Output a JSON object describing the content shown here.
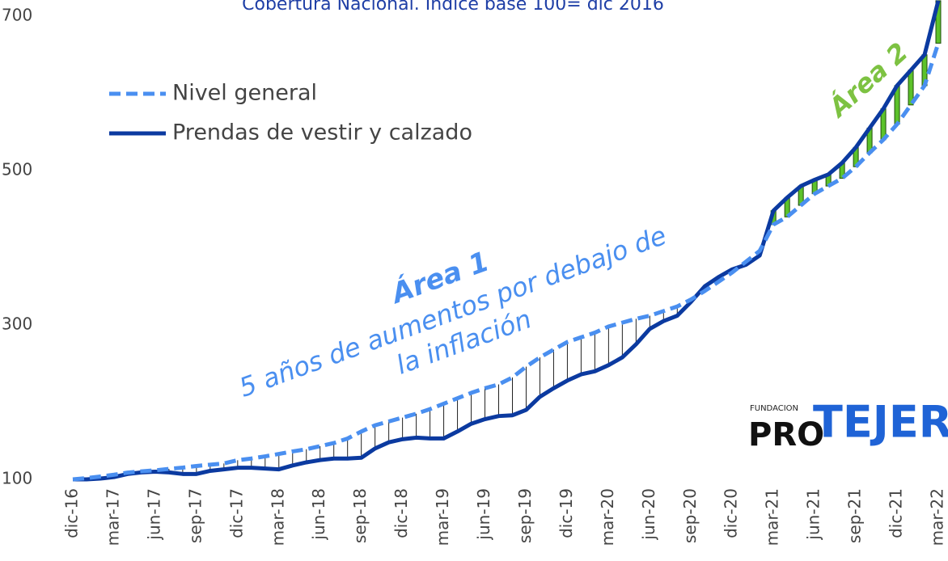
{
  "chart_data": {
    "type": "line",
    "title": "Cobertura Nacional. Índice base 100= dic 2016",
    "categories": [
      "dic-16",
      null,
      null,
      "mar-17",
      null,
      null,
      "jun-17",
      null,
      null,
      "sep-17",
      null,
      null,
      "dic-17",
      null,
      null,
      "mar-18",
      null,
      null,
      "jun-18",
      null,
      null,
      "sep-18",
      null,
      null,
      "dic-18",
      null,
      null,
      "mar-19",
      null,
      null,
      "jun-19",
      null,
      null,
      "sep-19",
      null,
      null,
      "dic-19",
      null,
      null,
      "mar-20",
      null,
      null,
      "jun-20",
      null,
      null,
      "sep-20",
      null,
      null,
      "dic-20",
      null,
      null,
      "mar-21",
      null,
      null,
      "jun-21",
      null,
      null,
      "sep-21",
      null,
      null,
      "dic-21",
      null,
      null,
      "mar-22"
    ],
    "series": [
      {
        "name": "Nivel general",
        "color": "#4a8ff0",
        "dashed": true,
        "values": [
          100,
          101.6,
          103.7,
          106,
          108.8,
          110.4,
          111.7,
          113.6,
          115.2,
          117.3,
          119,
          120.6,
          124.8,
          127,
          129.8,
          132.9,
          136.2,
          139,
          143,
          147,
          152.9,
          162,
          170,
          175,
          180,
          185,
          191,
          198,
          205,
          212,
          218,
          223,
          232,
          246,
          258,
          268,
          278,
          284,
          290,
          298,
          303,
          308,
          312,
          318,
          324,
          333,
          344,
          356,
          368,
          382,
          396,
          430,
          440,
          455,
          470,
          480,
          490,
          505,
          523,
          540,
          560,
          585,
          610,
          665
        ]
      },
      {
        "name": "Prendas de vestir y calzado",
        "color": "#0b3aa0",
        "dashed": false,
        "values": [
          100,
          100,
          101,
          103,
          107,
          109,
          110,
          109,
          107,
          107,
          111,
          113,
          115,
          115,
          114,
          113,
          118,
          122,
          125,
          127,
          127,
          128,
          140,
          148,
          152,
          154,
          153,
          153,
          162,
          172,
          178,
          182,
          183,
          190,
          207,
          218,
          228,
          236,
          240,
          248,
          258,
          275,
          295,
          305,
          312,
          330,
          350,
          362,
          372,
          378,
          390,
          448,
          465,
          480,
          488,
          495,
          510,
          530,
          555,
          580,
          610,
          630,
          650,
          720
        ]
      }
    ],
    "ylim": [
      100,
      700
    ],
    "yticks": [
      100,
      300,
      500,
      700
    ],
    "annotations": {
      "area1": "Área 1",
      "area1_text": [
        "5 años de aumentos por debajo de",
        "la inflación"
      ],
      "area2": "Área 2"
    },
    "logo": {
      "small": "FUNDACION",
      "left": "PRO",
      "right": "TEJER"
    }
  }
}
